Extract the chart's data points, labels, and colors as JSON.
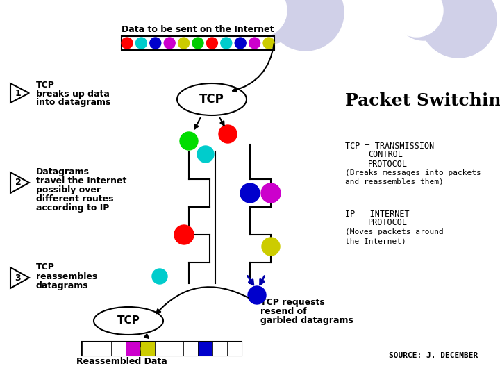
{
  "title": "Packet Switching",
  "background_color": "#ffffff",
  "packet_colors": [
    "#ff0000",
    "#00cccc",
    "#0000cc",
    "#cc00cc",
    "#cccc00",
    "#00cc00",
    "#ff0000",
    "#00cccc",
    "#0000cc",
    "#cc00cc",
    "#cccc00"
  ],
  "reassembled_colors": [
    "#ffffff",
    "#ffffff",
    "#ffffff",
    "#cc00cc",
    "#cccc00",
    "#ffffff",
    "#ffffff",
    "#ffffff",
    "#0000cc",
    "#ffffff",
    "#ffffff"
  ],
  "tcp_line1": "TCP = TRANSMISSION",
  "tcp_line2": "CONTROL",
  "tcp_line3": "PROTOCOL",
  "tcp_line4": "(Breaks messages into packets",
  "tcp_line5": "and reassembles them)",
  "ip_line1": "IP = INTERNET",
  "ip_line2": "PROTOCOL",
  "ip_line3": "(Moves packets around",
  "ip_line4": "the Internet)",
  "source_text": "SOURCE: J. DECEMBER",
  "data_label": "Data to be sent on the Internet",
  "tcp_breaks1": "TCP",
  "tcp_breaks2": "breaks up data",
  "tcp_breaks3": "into datagrams",
  "datagrams1": "Datagrams",
  "datagrams2": "travel the Internet",
  "datagrams3": "possibly over",
  "datagrams4": "different routes",
  "datagrams5": "according to IP",
  "reassembles1": "TCP",
  "reassembles2": "reassembles",
  "reassembles3": "datagrams",
  "reassembled_label": "Reassembled Data",
  "tcp_requests1": "TCP requests",
  "tcp_requests2": "resend of",
  "tcp_requests3": "garbled datagrams",
  "step1": "1",
  "step2": "2",
  "step3": "3"
}
